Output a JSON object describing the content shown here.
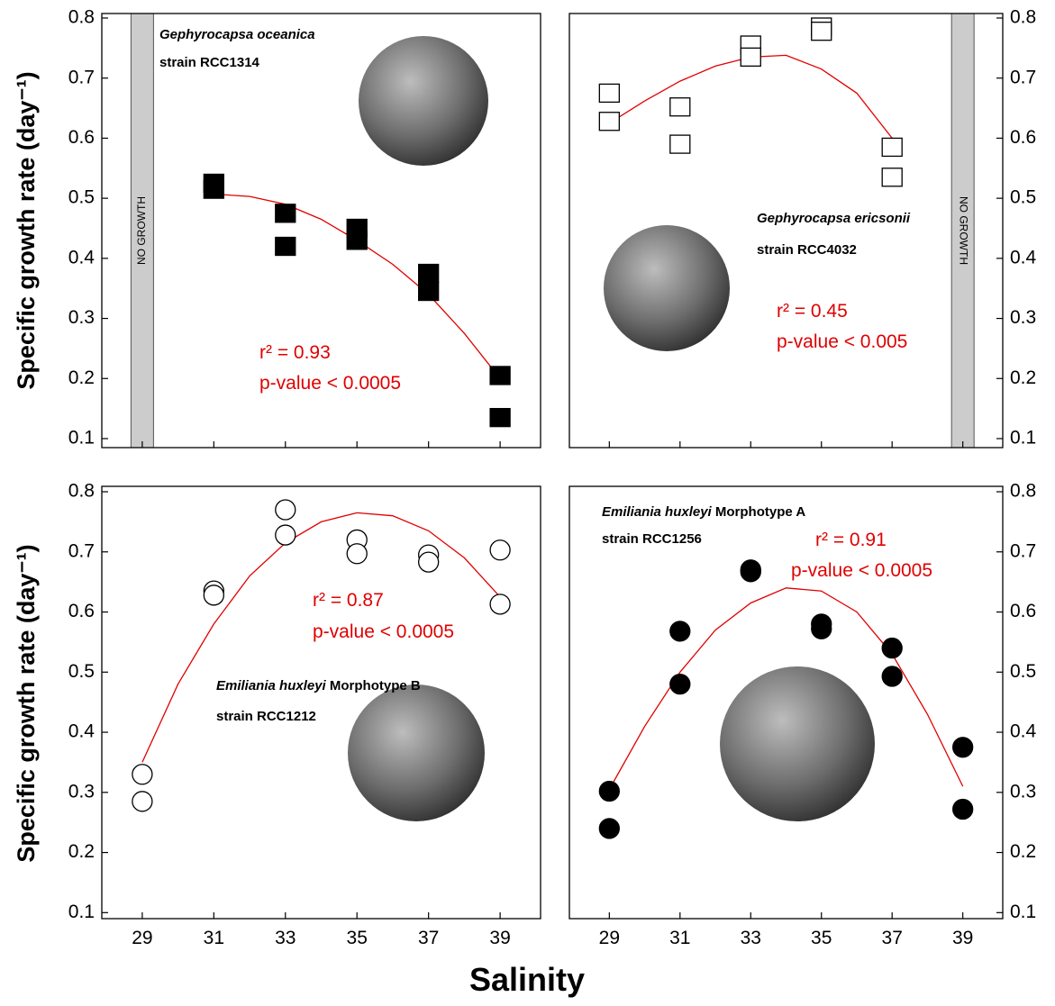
{
  "ylabel": "Specific growth rate (day⁻¹)",
  "xlabel": "Salinity",
  "chart_data": [
    {
      "type": "scatter",
      "species": "Gephyrocapsa oceanica",
      "strain": "strain RCC1314",
      "marker": "square",
      "filled": true,
      "color": "#000000",
      "fit_color": "#e00000",
      "x": [
        31,
        31,
        33,
        33,
        35,
        35,
        37,
        37,
        39,
        39
      ],
      "values": [
        0.525,
        0.515,
        0.475,
        0.42,
        0.45,
        0.43,
        0.375,
        0.345,
        0.205,
        0.135
      ],
      "fit": {
        "x": [
          31,
          32,
          33,
          34,
          35,
          36,
          37,
          38,
          39
        ],
        "y": [
          0.507,
          0.503,
          0.49,
          0.465,
          0.43,
          0.39,
          0.34,
          0.275,
          0.2
        ]
      },
      "r2_label": "r² = 0.93",
      "p_label": "p-value < 0.0005",
      "no_growth": {
        "x": 29,
        "label": "NO GROWTH"
      },
      "xlim": [
        27.87,
        40.13
      ],
      "ylim": [
        0.085,
        0.8075
      ],
      "xticks": [
        29,
        31,
        33,
        35,
        37,
        39
      ],
      "yticks": [
        0.1,
        0.2,
        0.3,
        0.4,
        0.5,
        0.6,
        0.7,
        0.8
      ]
    },
    {
      "type": "scatter",
      "species": "Gephyrocapsa ericsonii",
      "strain": "strain RCC4032",
      "marker": "square",
      "filled": false,
      "color": "#000000",
      "fit_color": "#e00000",
      "x": [
        29,
        29,
        31,
        31,
        33,
        33,
        35,
        35,
        37,
        37
      ],
      "values": [
        0.675,
        0.628,
        0.652,
        0.59,
        0.755,
        0.735,
        0.785,
        0.778,
        0.585,
        0.535
      ],
      "fit": {
        "x": [
          29,
          30,
          31,
          32,
          33,
          34,
          35,
          36,
          37
        ],
        "y": [
          0.625,
          0.662,
          0.695,
          0.72,
          0.735,
          0.738,
          0.715,
          0.675,
          0.6
        ]
      },
      "r2_label": "r² = 0.45",
      "p_label": "p-value < 0.005",
      "no_growth": {
        "x": 39,
        "label": "NO GROWTH"
      },
      "xlim": [
        27.87,
        40.13
      ],
      "ylim": [
        0.085,
        0.8075
      ],
      "xticks": [
        29,
        31,
        33,
        35,
        37,
        39
      ],
      "yticks": [
        0.1,
        0.2,
        0.3,
        0.4,
        0.5,
        0.6,
        0.7,
        0.8
      ]
    },
    {
      "type": "scatter",
      "species": "Emiliania huxleyi",
      "morphotype": "Morphotype B",
      "strain": "strain RCC1212",
      "marker": "circle",
      "filled": false,
      "color": "#000000",
      "fit_color": "#e00000",
      "x": [
        29,
        29,
        31,
        31,
        33,
        33,
        35,
        35,
        37,
        37,
        39,
        39
      ],
      "values": [
        0.33,
        0.285,
        0.635,
        0.628,
        0.77,
        0.728,
        0.72,
        0.697,
        0.695,
        0.683,
        0.703,
        0.613
      ],
      "fit": {
        "x": [
          29,
          30,
          31,
          32,
          33,
          34,
          35,
          36,
          37,
          38,
          39
        ],
        "y": [
          0.35,
          0.48,
          0.58,
          0.66,
          0.715,
          0.75,
          0.765,
          0.76,
          0.735,
          0.69,
          0.625
        ]
      },
      "r2_label": "r² = 0.87",
      "p_label": "p-value < 0.0005",
      "xlim": [
        27.87,
        40.13
      ],
      "ylim": [
        0.09,
        0.809
      ],
      "xticks": [
        29,
        31,
        33,
        35,
        37,
        39
      ],
      "yticks": [
        0.1,
        0.2,
        0.3,
        0.4,
        0.5,
        0.6,
        0.7,
        0.8
      ]
    },
    {
      "type": "scatter",
      "species": "Emiliania huxleyi",
      "morphotype": "Morphotype A",
      "strain": "strain RCC1256",
      "marker": "circle",
      "filled": true,
      "color": "#000000",
      "fit_color": "#e00000",
      "x": [
        29,
        29,
        31,
        31,
        33,
        33,
        35,
        35,
        37,
        37,
        39,
        39
      ],
      "values": [
        0.302,
        0.24,
        0.568,
        0.48,
        0.67,
        0.667,
        0.58,
        0.572,
        0.54,
        0.493,
        0.375,
        0.272
      ],
      "fit": {
        "x": [
          29,
          30,
          31,
          32,
          33,
          34,
          35,
          36,
          37,
          38,
          39
        ],
        "y": [
          0.305,
          0.41,
          0.5,
          0.57,
          0.615,
          0.64,
          0.635,
          0.6,
          0.53,
          0.43,
          0.31
        ]
      },
      "r2_label": "r² = 0.91",
      "p_label": "p-value < 0.0005",
      "xlim": [
        27.87,
        40.13
      ],
      "ylim": [
        0.09,
        0.809
      ],
      "xticks": [
        29,
        31,
        33,
        35,
        37,
        39
      ],
      "yticks": [
        0.1,
        0.2,
        0.3,
        0.4,
        0.5,
        0.6,
        0.7,
        0.8
      ]
    }
  ]
}
